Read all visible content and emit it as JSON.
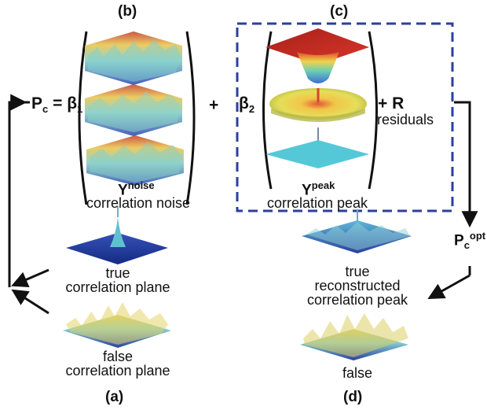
{
  "panels": {
    "a": "(a)",
    "b": "(b)",
    "c": "(c)",
    "d": "(d)"
  },
  "equation": {
    "lhs_symbol": "P",
    "lhs_sub": "c",
    "equals": "=",
    "beta1_symbol": "β",
    "beta1_sub": "1",
    "plus1": "+",
    "beta2_symbol": "β",
    "beta2_sub": "2",
    "plus_r": "+ R",
    "residuals": "residuals"
  },
  "noise_term": {
    "symbol": "Y",
    "sup": "noise",
    "caption": "correlation noise"
  },
  "peak_term": {
    "symbol": "Y",
    "sup": "peak",
    "caption": "correlation peak"
  },
  "left_planes": {
    "true_label": "true",
    "true_caption": "correlation plane",
    "false_label": "false",
    "false_caption": "correlation plane"
  },
  "right_planes": {
    "pc_opt_symbol": "P",
    "pc_opt_sub": "c",
    "pc_opt_sup": "opt",
    "true_label": "true",
    "recon1": "reconstructed",
    "recon2": "correlation peak",
    "false_label": "false"
  },
  "colors": {
    "dashed_box": "#2b3f9e",
    "dark_blue": "#1b2f8f",
    "cyan": "#55c8d8",
    "yellow": "#e8d85a",
    "red": "#c8271f"
  }
}
